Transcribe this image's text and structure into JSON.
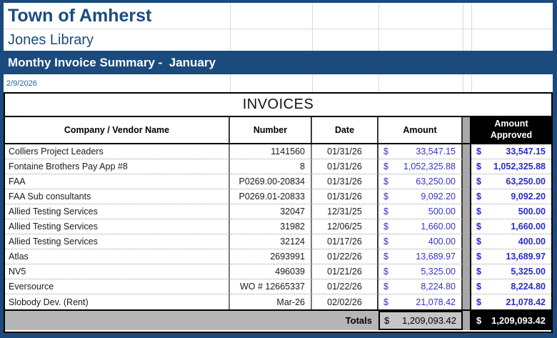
{
  "header": {
    "org": "Town of Amherst",
    "dept": "Jones Library",
    "title": "Monthy Invoice Summary -  January",
    "date": "2/9/2026"
  },
  "table": {
    "section_title": "INVOICES",
    "currency_symbol": "$",
    "columns": [
      "Company / Vendor Name",
      "Number",
      "Date",
      "Amount",
      "Amount Approved"
    ],
    "rows": [
      {
        "company": "Colliers Project Leaders",
        "number": "1141560",
        "date": "01/31/26",
        "amount": "33,547.15",
        "approved": "33,547.15"
      },
      {
        "company": "Fontaine Brothers Pay App #8",
        "number": "8",
        "date": "01/31/26",
        "amount": "1,052,325.88",
        "approved": "1,052,325.88"
      },
      {
        "company": "FAA",
        "number": "P0269.00-20834",
        "date": "01/31/26",
        "amount": "63,250.00",
        "approved": "63,250.00"
      },
      {
        "company": "FAA Sub consultants",
        "number": "P0269.01-20833",
        "date": "01/31/26",
        "amount": "9,092.20",
        "approved": "9,092.20"
      },
      {
        "company": "Allied Testing Services",
        "number": "32047",
        "date": "12/31/25",
        "amount": "500.00",
        "approved": "500.00"
      },
      {
        "company": "Allied Testing Services",
        "number": "31982",
        "date": "12/06/25",
        "amount": "1,660.00",
        "approved": "1,660.00"
      },
      {
        "company": "Allied Testing Services",
        "number": "32124",
        "date": "01/17/26",
        "amount": "400.00",
        "approved": "400.00"
      },
      {
        "company": "Atlas",
        "number": "2693991",
        "date": "01/22/26",
        "amount": "13,689.97",
        "approved": "13,689.97"
      },
      {
        "company": "NV5",
        "number": "496039",
        "date": "01/21/26",
        "amount": "5,325.00",
        "approved": "5,325.00"
      },
      {
        "company": "Eversource",
        "number": "WO # 12665337",
        "date": "01/22/26",
        "amount": "8,224.80",
        "approved": "8,224.80"
      },
      {
        "company": "Slobody Dev. (Rent)",
        "number": "Mar-26",
        "date": "02/02/26",
        "amount": "21,078.42",
        "approved": "21,078.42"
      }
    ],
    "totals": {
      "label": "Totals",
      "amount": "1,209,093.42",
      "approved": "1,209,093.42"
    }
  },
  "colors": {
    "frame_blue": "#1B4B7D",
    "title_bar_blue": "#1B4B7D",
    "amount_text_blue": "#3333CC",
    "approved_header_bg": "#000000",
    "totals_gray": "#B5B5B5",
    "separator_gray": "#A8A8A8"
  }
}
